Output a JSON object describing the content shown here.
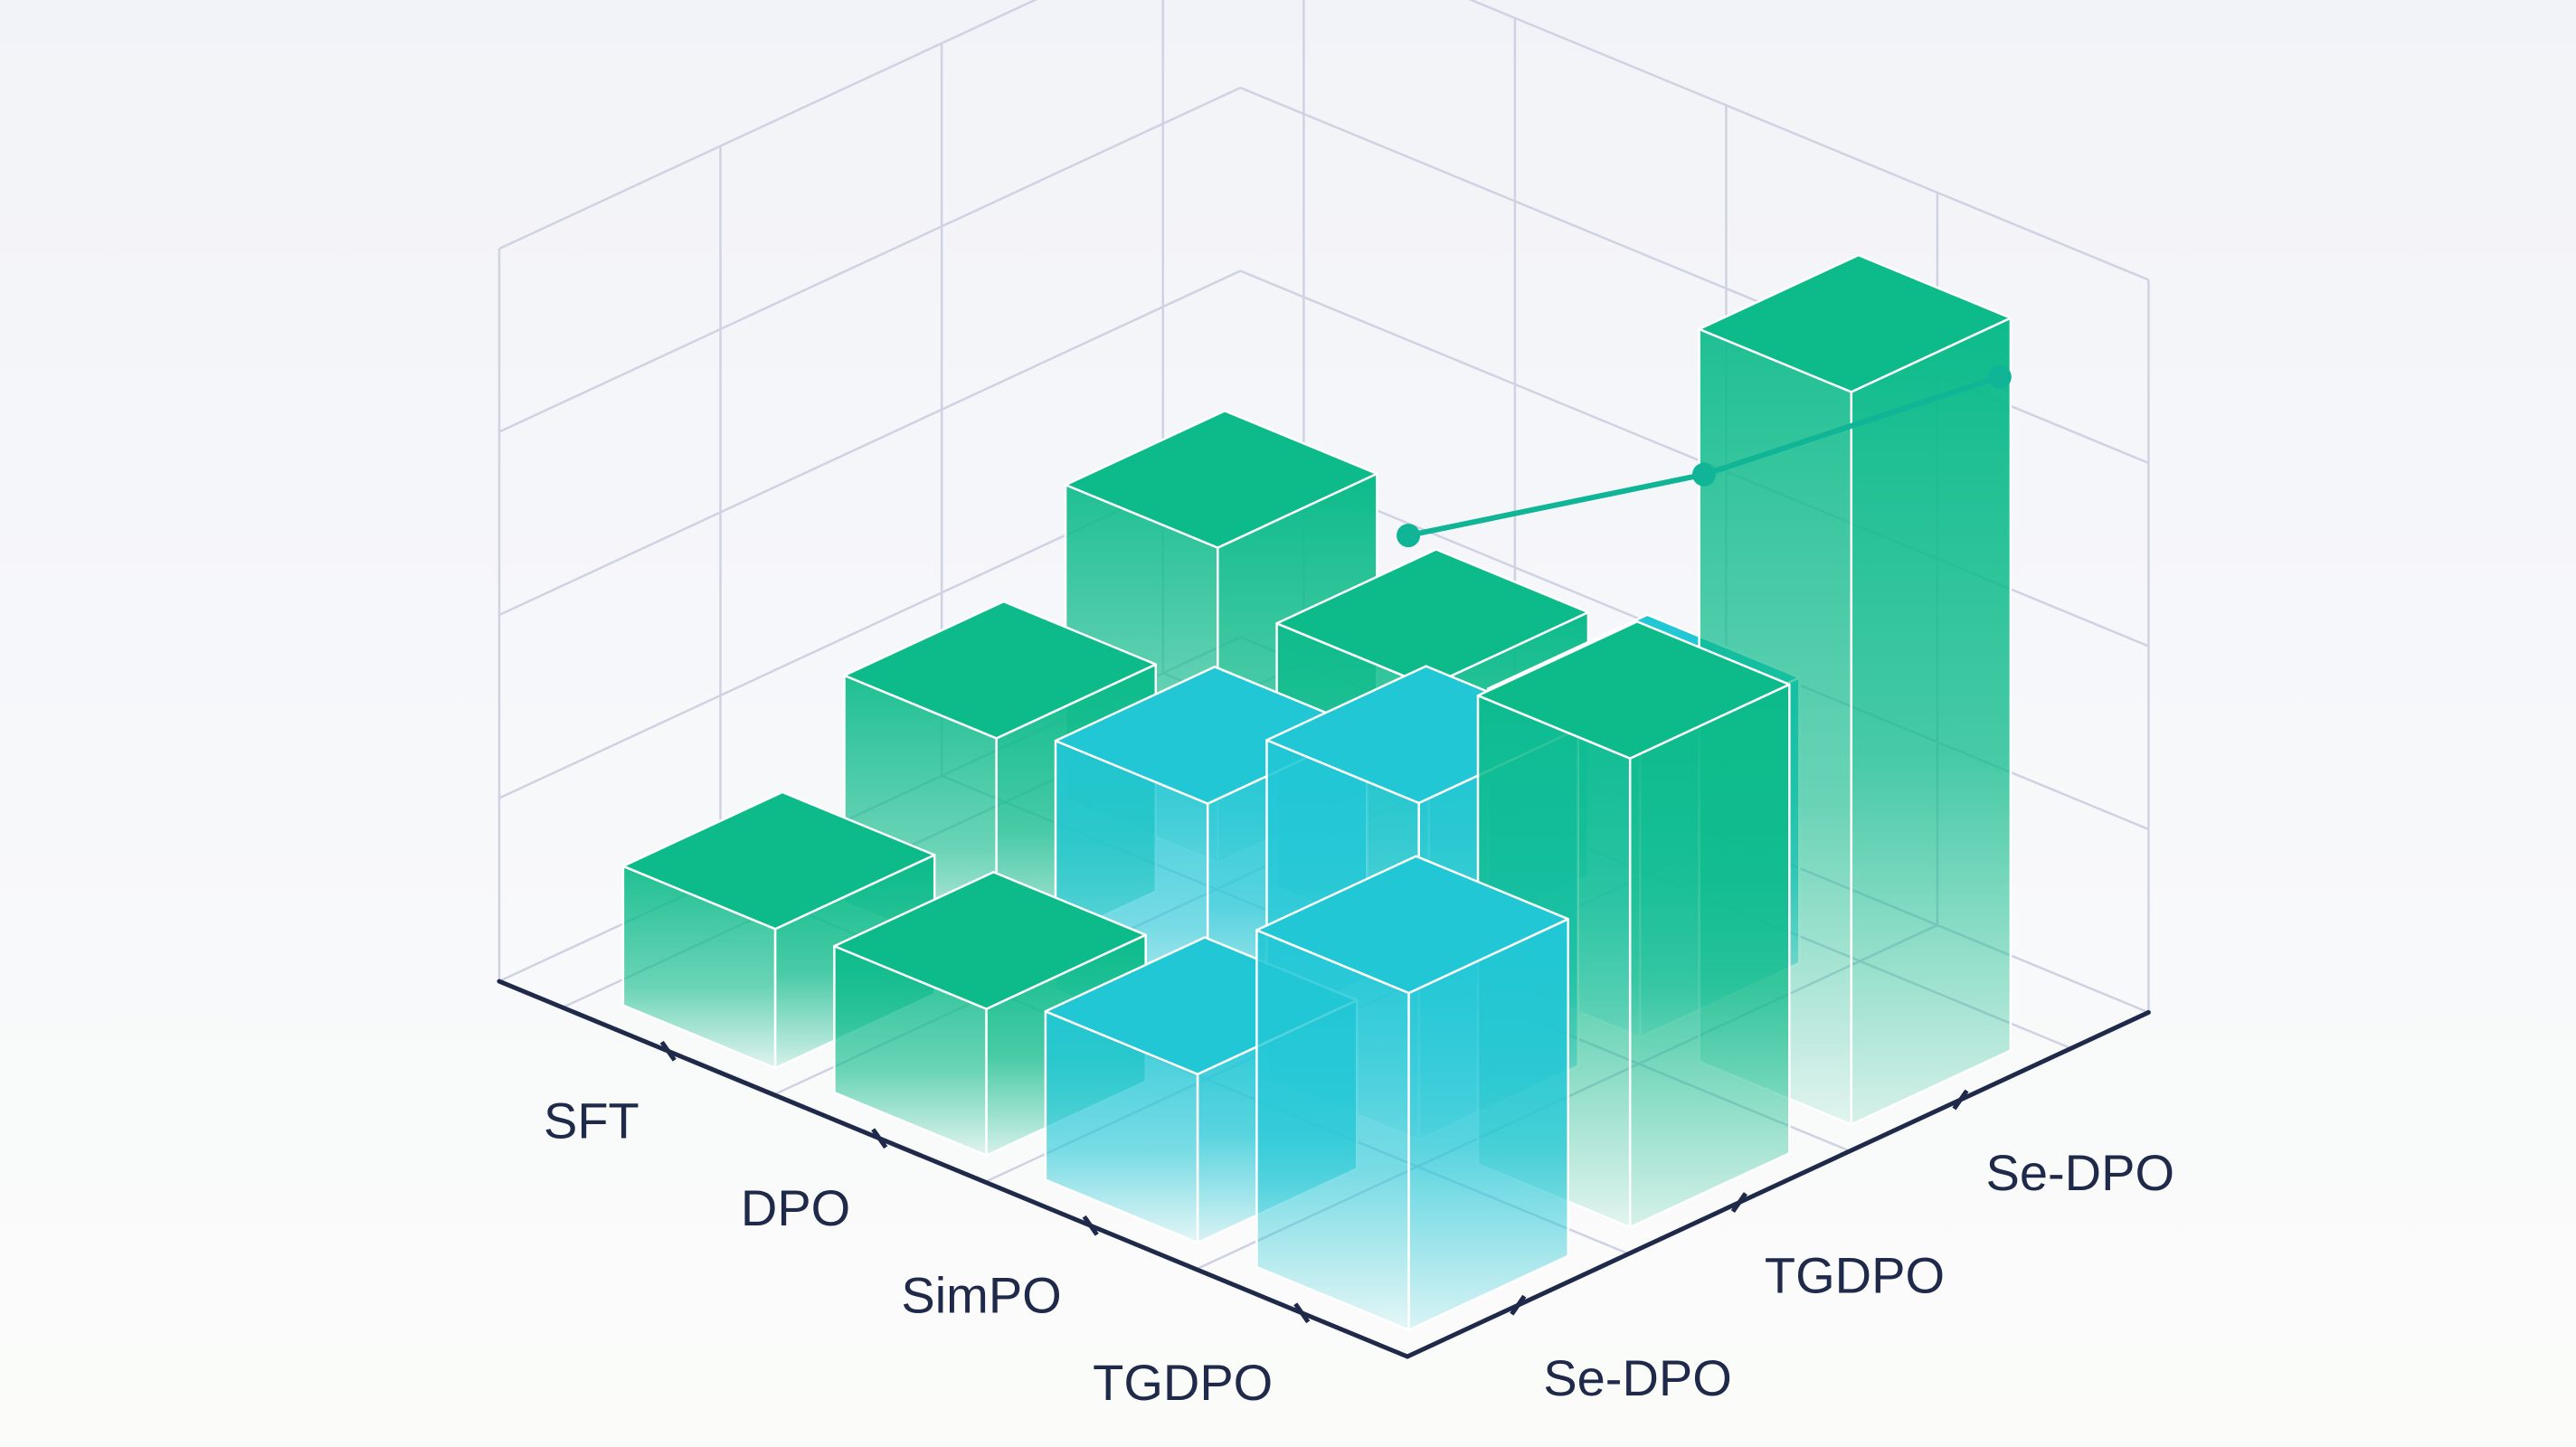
{
  "chart_data": {
    "type": "bar",
    "style": "3d-isometric",
    "title": "",
    "xlabel": "",
    "ylabel": "",
    "x_categories": [
      "SFT",
      "DPO",
      "SimPO",
      "TGDPO"
    ],
    "y_categories": [
      "Se-DPO",
      "TGDPO",
      "Se-DPO"
    ],
    "zlim": [
      0,
      10
    ],
    "grid": true,
    "legend": "none",
    "bars": [
      {
        "x": "SFT",
        "y": "Se-DPO",
        "value": 1.9,
        "color": "green"
      },
      {
        "x": "DPO",
        "y": "Se-DPO",
        "value": 2.0,
        "color": "green"
      },
      {
        "x": "SimPO",
        "y": "Se-DPO",
        "value": 2.3,
        "color": "cyan"
      },
      {
        "x": "TGDPO",
        "y": "Se-DPO",
        "value": 4.6,
        "color": "cyan"
      },
      {
        "x": "SFT",
        "y": "TGDPO",
        "value": 3.1,
        "color": "green"
      },
      {
        "x": "DPO",
        "y": "TGDPO",
        "value": 3.4,
        "color": "cyan"
      },
      {
        "x": "SimPO",
        "y": "TGDPO",
        "value": 4.6,
        "color": "cyan"
      },
      {
        "x": "TGDPO",
        "y": "TGDPO",
        "value": 6.4,
        "color": "green"
      },
      {
        "x": "SFT",
        "y": "Se-DPO",
        "value": 4.3,
        "color": "green"
      },
      {
        "x": "DPO",
        "y": "Se-DPO",
        "value": 3.6,
        "color": "green"
      },
      {
        "x": "SimPO",
        "y": "Se-DPO",
        "value": 3.9,
        "color": "cyan"
      },
      {
        "x": "TGDPO",
        "y": "Se-DPO",
        "value": 10.0,
        "color": "green"
      }
    ],
    "line": {
      "values": [
        2.6,
        5.1,
        8.1
      ]
    },
    "colors": {
      "green": "#0dbb8a",
      "cyan": "#22c7d6",
      "line": "#10b597",
      "axis": "#1f2a4a",
      "grid": "#cfd2e3"
    }
  }
}
